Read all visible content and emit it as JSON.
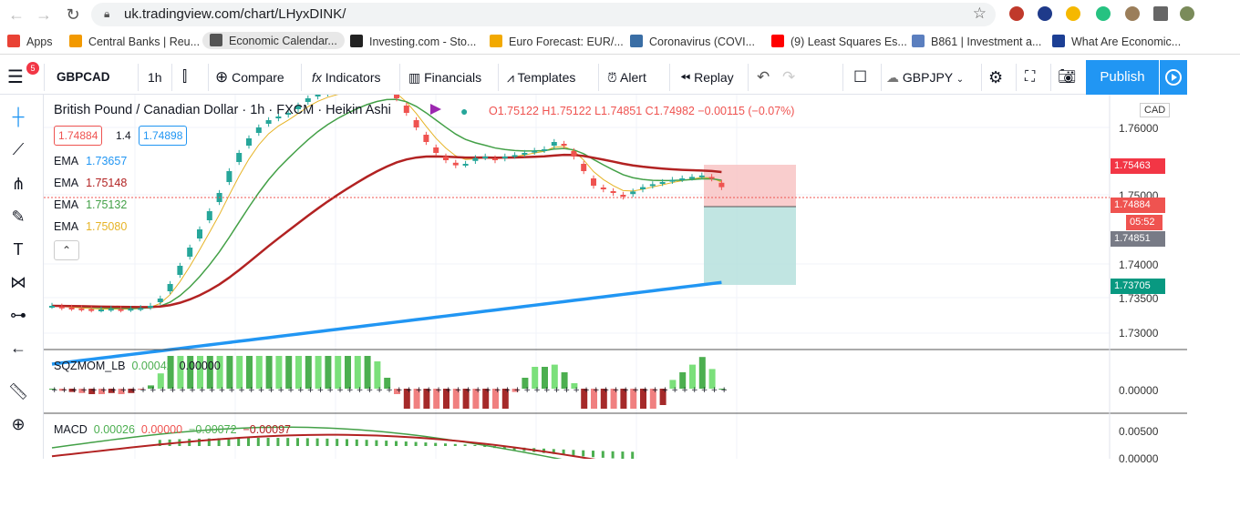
{
  "browser": {
    "url": "uk.tradingview.com/chart/LHyxDINK/",
    "bookmarks": [
      {
        "label": "Apps",
        "color": "#e94235"
      },
      {
        "label": "Central Banks | Reu...",
        "color": "#f29900"
      },
      {
        "label": "Economic Calendar...",
        "color": "#555555"
      },
      {
        "label": "Investing.com - Sto...",
        "color": "#222222"
      },
      {
        "label": "Euro Forecast: EUR/...",
        "color": "#f2a900"
      },
      {
        "label": "Coronavirus (COVI...",
        "color": "#3a6ea5"
      },
      {
        "label": "(9) Least Squares Es...",
        "color": "#ff0000"
      },
      {
        "label": "B861 | Investment a...",
        "color": "#5b7fbf"
      },
      {
        "label": "What Are Economic...",
        "color": "#1c3f94"
      }
    ]
  },
  "toolbar": {
    "symbol": "GBPCAD",
    "interval": "1h",
    "compare": "Compare",
    "indicators": "Indicators",
    "financials": "Financials",
    "templates": "Templates",
    "alert": "Alert",
    "replay": "Replay",
    "layout_symbol": "GBPJPY",
    "publish": "Publish",
    "notification_count": "5"
  },
  "legend": {
    "title": "British Pound / Canadian Dollar · 1h · FXCM · Heikin Ashi",
    "ohlc": "O1.75122  H1.75122  L1.74851  C1.74982  −0.00115 (−0.07%)",
    "bid": "1.74884",
    "spread": "1.4",
    "ask": "1.74898",
    "emas": [
      {
        "label": "EMA",
        "value": "1.73657",
        "color": "#2196f3"
      },
      {
        "label": "EMA",
        "value": "1.75148",
        "color": "#b22222"
      },
      {
        "label": "EMA",
        "value": "1.75132",
        "color": "#43a047"
      },
      {
        "label": "EMA",
        "value": "1.75080",
        "color": "#e6b325"
      }
    ]
  },
  "price_axis": {
    "currency": "CAD",
    "labels": [
      "1.76000",
      "1.75000",
      "1.74000",
      "1.73500",
      "1.73000"
    ],
    "tags": [
      {
        "text": "1.75463",
        "color": "#f23645"
      },
      {
        "text": "1.74884",
        "color": "#ef5350"
      },
      {
        "text": "05:52",
        "color": "#ef5350"
      },
      {
        "text": "1.74851",
        "color": "#787b86"
      },
      {
        "text": "1.73705",
        "color": "#089981"
      }
    ]
  },
  "sqzmom": {
    "label": "SQZMOM_LB",
    "v1": "0.00042",
    "v2": "0.00000",
    "axis": "0.00000"
  },
  "macd": {
    "label": "MACD",
    "v1": "0.00026",
    "v2": "0.00000",
    "v3": "−0.00072",
    "v4": "−0.00097",
    "axis_top": "0.00500",
    "axis_bottom": "0.00000"
  },
  "chart_data": {
    "type": "candlestick",
    "symbol": "GBPCAD",
    "ylim": [
      1.7275,
      1.7625
    ],
    "candles_close_approx": [
      1.7335,
      1.7333,
      1.7332,
      1.7331,
      1.733,
      1.733,
      1.7331,
      1.733,
      1.7331,
      1.7332,
      1.7335,
      1.7345,
      1.7365,
      1.739,
      1.7415,
      1.744,
      1.7465,
      1.749,
      1.752,
      1.7545,
      1.7565,
      1.758,
      1.759,
      1.7595,
      1.76,
      1.761,
      1.762,
      1.7625,
      1.7628,
      1.763,
      1.7632,
      1.7635,
      1.7637,
      1.7635,
      1.763,
      1.762,
      1.76,
      1.758,
      1.756,
      1.7545,
      1.7535,
      1.7528,
      1.753,
      1.7538,
      1.754,
      1.7535,
      1.754,
      1.7542,
      1.7545,
      1.7548,
      1.755,
      1.756,
      1.7555,
      1.754,
      1.752,
      1.75,
      1.7495,
      1.749,
      1.7485,
      1.7492,
      1.7498,
      1.7502,
      1.7505,
      1.7508,
      1.751,
      1.7512,
      1.7514,
      1.751,
      1.7498
    ]
  }
}
